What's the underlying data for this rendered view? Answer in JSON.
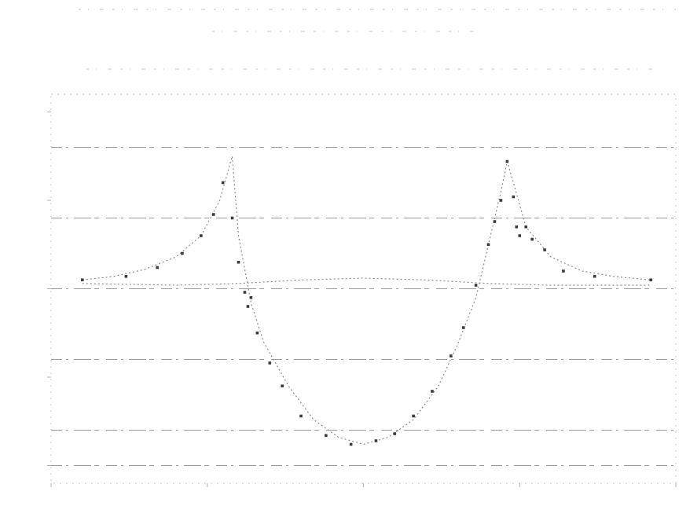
{
  "chart_data": {
    "type": "line",
    "title": "",
    "xlabel": "",
    "ylabel": "",
    "xlim": [
      0,
      1
    ],
    "ylim": [
      -1.1,
      1.1
    ],
    "grid": true,
    "legend": "none",
    "colors": {
      "points": "#3a3a3a",
      "fit_line": "#8c8c8c",
      "grid": "#9a9a9a",
      "frame": "#c8c8c8"
    },
    "series": [
      {
        "style": "markers",
        "x": [
          0.05,
          0.12,
          0.17,
          0.21,
          0.24,
          0.26,
          0.275,
          0.29,
          0.3,
          0.31,
          0.315,
          0.32,
          0.33,
          0.35,
          0.37,
          0.4,
          0.44,
          0.48,
          0.52,
          0.55,
          0.58,
          0.61,
          0.64,
          0.66,
          0.68,
          0.7,
          0.71,
          0.72,
          0.73,
          0.74,
          0.745,
          0.75,
          0.76,
          0.77,
          0.79,
          0.82,
          0.87,
          0.96
        ],
        "y": [
          0.05,
          0.07,
          0.12,
          0.2,
          0.3,
          0.42,
          0.6,
          0.4,
          0.15,
          -0.02,
          -0.1,
          -0.05,
          -0.25,
          -0.42,
          -0.55,
          -0.72,
          -0.83,
          -0.88,
          -0.86,
          -0.82,
          -0.72,
          -0.58,
          -0.38,
          -0.22,
          0.02,
          0.25,
          0.38,
          0.5,
          0.72,
          0.52,
          0.35,
          0.3,
          0.35,
          0.28,
          0.22,
          0.1,
          0.07,
          0.05
        ]
      },
      {
        "style": "line",
        "x": [
          0.05,
          0.1,
          0.15,
          0.2,
          0.24,
          0.27,
          0.29,
          0.3,
          0.32,
          0.34,
          0.38,
          0.42,
          0.46,
          0.5,
          0.54,
          0.58,
          0.62,
          0.65,
          0.68,
          0.7,
          0.72,
          0.73,
          0.74,
          0.76,
          0.8,
          0.85,
          0.9,
          0.96
        ],
        "y": [
          0.05,
          0.07,
          0.11,
          0.18,
          0.3,
          0.5,
          0.75,
          0.3,
          -0.08,
          -0.3,
          -0.55,
          -0.74,
          -0.84,
          -0.88,
          -0.84,
          -0.74,
          -0.55,
          -0.32,
          -0.05,
          0.25,
          0.55,
          0.72,
          0.6,
          0.35,
          0.18,
          0.1,
          0.07,
          0.05
        ]
      },
      {
        "style": "line",
        "x": [
          0.05,
          0.2,
          0.3,
          0.4,
          0.5,
          0.6,
          0.7,
          0.8,
          0.96
        ],
        "y": [
          0.03,
          0.02,
          0.03,
          0.05,
          0.06,
          0.05,
          0.03,
          0.02,
          0.02
        ]
      }
    ]
  }
}
